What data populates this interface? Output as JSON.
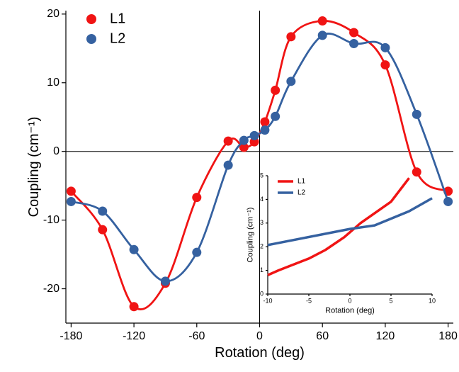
{
  "chart_data": [
    {
      "type": "line",
      "x_label": "Rotation (deg)",
      "y_label": "Coupling (cm⁻¹)",
      "x": [
        -180,
        -150,
        -120,
        -90,
        -60,
        -30,
        -15,
        -5,
        5,
        15,
        30,
        60,
        90,
        120,
        150,
        180
      ],
      "series": [
        {
          "name": "L1",
          "color": "#f01414",
          "values": [
            -5.8,
            -11.4,
            -22.6,
            -19.2,
            -6.7,
            1.5,
            0.6,
            1.4,
            4.3,
            8.9,
            16.7,
            19.0,
            17.3,
            12.6,
            -3.0,
            -5.8
          ]
        },
        {
          "name": "L2",
          "color": "#3561a0",
          "values": [
            -7.3,
            -8.7,
            -14.3,
            -18.9,
            -14.7,
            -2.0,
            1.6,
            2.3,
            3.1,
            5.1,
            10.2,
            16.9,
            15.7,
            15.1,
            5.4,
            -7.3
          ]
        }
      ],
      "xlim": [
        -185,
        185
      ],
      "ylim": [
        -25,
        20.5
      ],
      "xticks": [
        -180,
        -120,
        -60,
        0,
        60,
        120,
        180
      ],
      "yticks": [
        -20,
        -10,
        0,
        10,
        20
      ],
      "markers": true,
      "smooth": true,
      "zero_lines": true,
      "legend": "upper left"
    },
    {
      "type": "line",
      "x_label": "Rotation (deg)",
      "y_label": "Coupling (cm⁻¹)",
      "series": [
        {
          "name": "L1",
          "color": "#f01414",
          "x": [
            -10,
            -8.7,
            -5,
            -3,
            -0.7,
            1.3,
            5,
            7.2
          ],
          "values": [
            0.8,
            1.0,
            1.5,
            1.86,
            2.4,
            3.0,
            3.9,
            4.9
          ]
        },
        {
          "name": "L2",
          "color": "#3561a0",
          "x": [
            -10,
            0,
            3,
            7.2,
            10
          ],
          "values": [
            2.07,
            2.75,
            2.9,
            3.5,
            4.05
          ]
        }
      ],
      "xlim": [
        -10,
        10
      ],
      "ylim": [
        0,
        5
      ],
      "xticks": [
        -10,
        -5,
        0,
        5,
        10
      ],
      "yticks": [
        0,
        1,
        2,
        3,
        4,
        5
      ],
      "markers": false,
      "smooth": false,
      "zero_lines": false,
      "legend": "upper left"
    }
  ]
}
